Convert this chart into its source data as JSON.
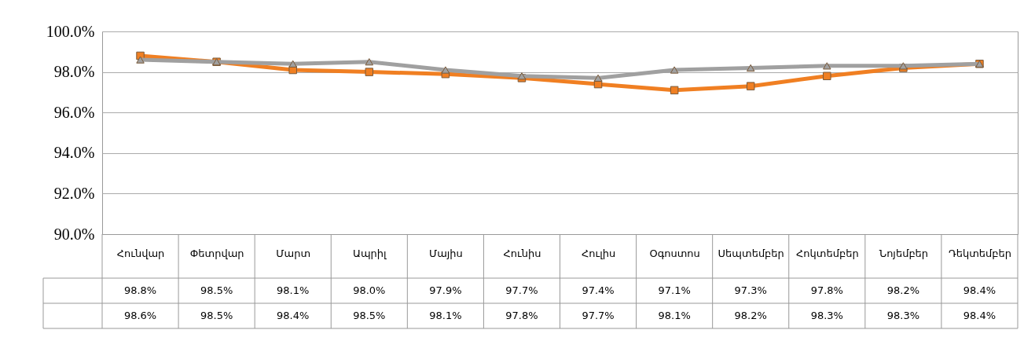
{
  "chart_data": {
    "type": "line",
    "categories": [
      "Հունվար",
      "Փետրվար",
      "Մարտ",
      "Ապրիլ",
      "Մայիս",
      "Հունիս",
      "Հուլիս",
      "Օգոստոս",
      "Սեպտեմբեր",
      "Հոկտեմբեր",
      "Նոյեմբեր",
      "Դեկտեմբեր"
    ],
    "series": [
      {
        "color": "#f07f22",
        "marker": "square",
        "values": [
          98.8,
          98.5,
          98.1,
          98.0,
          97.9,
          97.7,
          97.4,
          97.1,
          97.3,
          97.8,
          98.2,
          98.4
        ],
        "value_labels": [
          "98.8%",
          "98.5%",
          "98.1%",
          "98.0%",
          "97.9%",
          "97.7%",
          "97.4%",
          "97.1%",
          "97.3%",
          "97.8%",
          "98.2%",
          "98.4%"
        ]
      },
      {
        "color": "#a0a0a0",
        "marker": "triangle",
        "values": [
          98.6,
          98.5,
          98.4,
          98.5,
          98.1,
          97.8,
          97.7,
          98.1,
          98.2,
          98.3,
          98.3,
          98.4
        ],
        "value_labels": [
          "98.6%",
          "98.5%",
          "98.4%",
          "98.5%",
          "98.1%",
          "97.8%",
          "97.7%",
          "98.1%",
          "98.2%",
          "98.3%",
          "98.3%",
          "98.4%"
        ]
      }
    ],
    "ylim": [
      90,
      100
    ],
    "yticks": [
      {
        "value": 90,
        "label": "90.0%"
      },
      {
        "value": 92,
        "label": "92.0%"
      },
      {
        "value": 94,
        "label": "94.0%"
      },
      {
        "value": 96,
        "label": "96.0%"
      },
      {
        "value": 98,
        "label": "98.0%"
      },
      {
        "value": 100,
        "label": "100.0%"
      }
    ],
    "grid": "y"
  }
}
